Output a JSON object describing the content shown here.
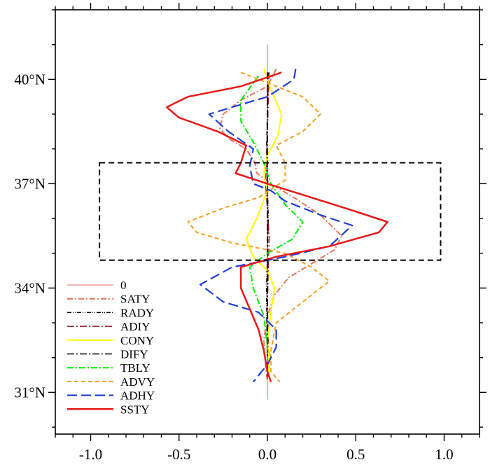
{
  "chart_data": {
    "type": "line",
    "title": "",
    "xlabel": "",
    "ylabel": "",
    "xlim": [
      -1.2,
      1.2
    ],
    "ylim": [
      29.8,
      42.0
    ],
    "x_ticks": [
      -1.0,
      -0.5,
      0.0,
      0.5,
      1.0
    ],
    "x_tick_labels": [
      "-1.0",
      "-0.5",
      "0.0",
      "0.5",
      "1.0"
    ],
    "y_ticks": [
      31,
      34,
      37,
      40
    ],
    "y_tick_labels": [
      "31°N",
      "34°N",
      "37°N",
      "40°N"
    ],
    "legend_position": "bottom-left",
    "highlight_box": {
      "x_range": [
        -0.95,
        0.98
      ],
      "y_range": [
        34.8,
        37.6
      ],
      "style": "dashed"
    },
    "series": [
      {
        "name": "0",
        "color": "#f4b6b6",
        "dash": "",
        "width": 2,
        "points": [
          [
            0,
            41.0
          ],
          [
            0,
            30.8
          ]
        ]
      },
      {
        "name": "SATY",
        "color": "#e8735a",
        "dash": "8 3 2 3",
        "width": 2,
        "points": [
          [
            0.05,
            40.3
          ],
          [
            0.0,
            39.8
          ],
          [
            -0.15,
            39.4
          ],
          [
            -0.25,
            39.0
          ],
          [
            -0.27,
            38.6
          ],
          [
            -0.22,
            38.3
          ],
          [
            -0.12,
            38.0
          ],
          [
            -0.07,
            37.6
          ],
          [
            -0.06,
            37.3
          ],
          [
            0.02,
            37.0
          ],
          [
            0.15,
            36.6
          ],
          [
            0.3,
            36.1
          ],
          [
            0.42,
            35.5
          ],
          [
            0.38,
            35.1
          ],
          [
            0.25,
            34.7
          ],
          [
            0.12,
            34.3
          ],
          [
            0.04,
            33.8
          ],
          [
            0.0,
            33.2
          ],
          [
            -0.02,
            32.5
          ],
          [
            -0.01,
            31.8
          ],
          [
            0.0,
            31.3
          ]
        ]
      },
      {
        "name": "RADY",
        "color": "#000000",
        "dash": "6 2 1 2 1 2",
        "width": 1.5,
        "points": [
          [
            0.005,
            40.2
          ],
          [
            -0.005,
            38.0
          ],
          [
            0.005,
            36.0
          ],
          [
            -0.005,
            34.0
          ],
          [
            0.0,
            31.4
          ]
        ]
      },
      {
        "name": "ADIY",
        "color": "#8b1a1a",
        "dash": "10 3 2 3",
        "width": 1.5,
        "points": [
          [
            0.01,
            40.2
          ],
          [
            0.0,
            38.5
          ],
          [
            -0.01,
            37.0
          ],
          [
            0.01,
            35.5
          ],
          [
            0.0,
            33.5
          ],
          [
            0.01,
            31.5
          ]
        ]
      },
      {
        "name": "CONY",
        "color": "#ffff00",
        "dash": "",
        "width": 2,
        "points": [
          [
            -0.02,
            40.3
          ],
          [
            0.02,
            39.7
          ],
          [
            0.08,
            39.0
          ],
          [
            0.06,
            38.4
          ],
          [
            0.0,
            37.8
          ],
          [
            -0.02,
            37.3
          ],
          [
            0.0,
            36.8
          ],
          [
            -0.06,
            36.0
          ],
          [
            -0.12,
            35.4
          ],
          [
            -0.08,
            34.9
          ],
          [
            0.0,
            34.5
          ],
          [
            0.04,
            34.0
          ],
          [
            0.02,
            33.3
          ],
          [
            0.0,
            32.5
          ],
          [
            0.01,
            31.5
          ]
        ]
      },
      {
        "name": "DIFY",
        "color": "#000000",
        "dash": "10 3 2 3",
        "width": 1.5,
        "points": [
          [
            0.0,
            40.2
          ],
          [
            0.0,
            31.4
          ]
        ]
      },
      {
        "name": "TBLY",
        "color": "#00ee00",
        "dash": "9 3 2 3",
        "width": 2,
        "points": [
          [
            -0.05,
            40.1
          ],
          [
            -0.15,
            39.4
          ],
          [
            -0.15,
            38.8
          ],
          [
            -0.08,
            38.2
          ],
          [
            -0.02,
            37.6
          ],
          [
            0.02,
            37.0
          ],
          [
            0.1,
            36.4
          ],
          [
            0.2,
            35.9
          ],
          [
            0.14,
            35.4
          ],
          [
            0.0,
            35.0
          ],
          [
            -0.1,
            34.6
          ],
          [
            -0.08,
            34.0
          ],
          [
            -0.02,
            33.2
          ],
          [
            0.0,
            32.3
          ],
          [
            0.0,
            31.4
          ]
        ]
      },
      {
        "name": "ADVY",
        "color": "#f4a020",
        "dash": "6 4",
        "width": 2,
        "points": [
          [
            -0.15,
            40.2
          ],
          [
            0.0,
            39.9
          ],
          [
            0.2,
            39.5
          ],
          [
            0.3,
            39.0
          ],
          [
            0.2,
            38.5
          ],
          [
            0.05,
            38.1
          ],
          [
            0.1,
            37.6
          ],
          [
            0.1,
            37.1
          ],
          [
            -0.05,
            36.6
          ],
          [
            -0.25,
            36.3
          ],
          [
            -0.45,
            35.9
          ],
          [
            -0.4,
            35.6
          ],
          [
            -0.2,
            35.3
          ],
          [
            0.1,
            35.0
          ],
          [
            0.25,
            34.6
          ],
          [
            0.35,
            34.2
          ],
          [
            0.2,
            33.6
          ],
          [
            0.05,
            33.0
          ],
          [
            0.02,
            32.2
          ],
          [
            0.02,
            31.6
          ],
          [
            0.07,
            31.3
          ]
        ]
      },
      {
        "name": "ADHY",
        "color": "#1f3fd8",
        "dash": "14 6",
        "width": 2.2,
        "points": [
          [
            0.16,
            40.3
          ],
          [
            0.15,
            40.0
          ],
          [
            0.0,
            39.5
          ],
          [
            -0.2,
            39.2
          ],
          [
            -0.33,
            39.0
          ],
          [
            -0.22,
            38.5
          ],
          [
            -0.08,
            38.0
          ],
          [
            -0.1,
            37.5
          ],
          [
            -0.08,
            37.0
          ],
          [
            0.02,
            36.8
          ],
          [
            0.1,
            36.5
          ],
          [
            0.3,
            36.1
          ],
          [
            0.48,
            35.8
          ],
          [
            0.35,
            35.2
          ],
          [
            0.1,
            34.9
          ],
          [
            -0.2,
            34.6
          ],
          [
            -0.38,
            34.1
          ],
          [
            -0.25,
            33.6
          ],
          [
            -0.05,
            33.3
          ],
          [
            0.05,
            32.8
          ],
          [
            0.05,
            32.3
          ],
          [
            0.0,
            31.8
          ],
          [
            -0.08,
            31.3
          ]
        ]
      },
      {
        "name": "SSTY",
        "color": "#e81818",
        "dash": "",
        "width": 2.5,
        "points": [
          [
            0.08,
            40.2
          ],
          [
            -0.15,
            39.8
          ],
          [
            -0.45,
            39.5
          ],
          [
            -0.57,
            39.2
          ],
          [
            -0.5,
            38.9
          ],
          [
            -0.28,
            38.5
          ],
          [
            -0.12,
            38.1
          ],
          [
            -0.15,
            37.6
          ],
          [
            -0.18,
            37.3
          ],
          [
            0.0,
            37.0
          ],
          [
            0.25,
            36.6
          ],
          [
            0.5,
            36.2
          ],
          [
            0.68,
            35.9
          ],
          [
            0.63,
            35.6
          ],
          [
            0.35,
            35.2
          ],
          [
            0.05,
            34.9
          ],
          [
            -0.15,
            34.6
          ],
          [
            -0.15,
            34.0
          ],
          [
            -0.1,
            33.4
          ],
          [
            -0.05,
            32.8
          ],
          [
            -0.02,
            32.2
          ],
          [
            0.0,
            31.6
          ],
          [
            0.02,
            31.3
          ]
        ]
      }
    ]
  }
}
